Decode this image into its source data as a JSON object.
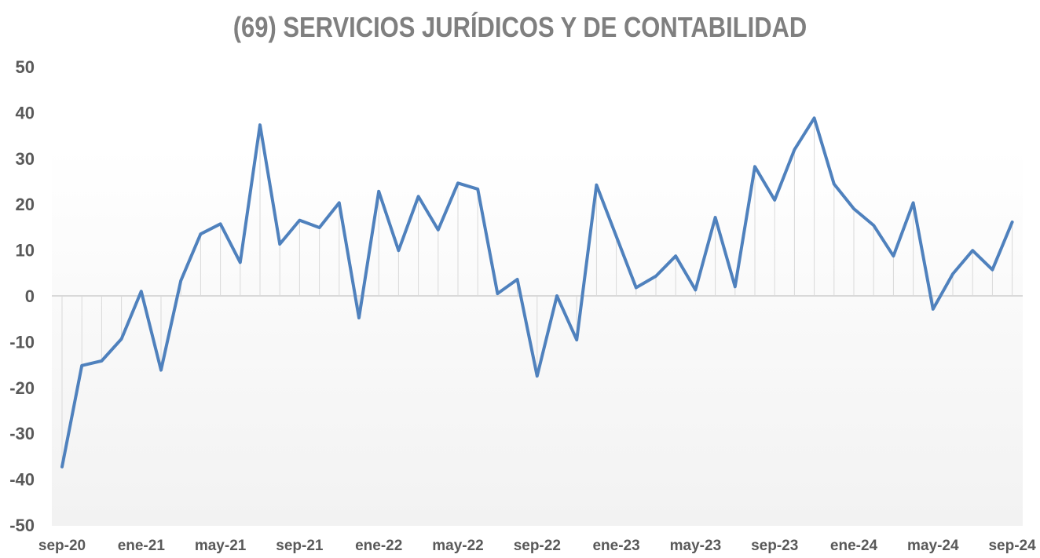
{
  "chart_data": {
    "type": "line",
    "title": "(69) SERVICIOS JURÍDICOS Y DE CONTABILIDAD",
    "xlabel": "",
    "ylabel": "",
    "ylim": [
      -50,
      50
    ],
    "yticks": [
      50,
      40,
      30,
      20,
      10,
      0,
      -10,
      -20,
      -30,
      -40,
      -50
    ],
    "x_tick_labels": [
      "sep-20",
      "ene-21",
      "may-21",
      "sep-21",
      "ene-22",
      "may-22",
      "sep-22",
      "ene-23",
      "may-23",
      "sep-23",
      "ene-24",
      "may-24",
      "sep-24"
    ],
    "x": [
      "sep-20",
      "oct-20",
      "nov-20",
      "dic-20",
      "ene-21",
      "feb-21",
      "mar-21",
      "abr-21",
      "may-21",
      "jun-21",
      "jul-21",
      "ago-21",
      "sep-21",
      "oct-21",
      "nov-21",
      "dic-21",
      "ene-22",
      "feb-22",
      "mar-22",
      "abr-22",
      "may-22",
      "jun-22",
      "jul-22",
      "ago-22",
      "sep-22",
      "oct-22",
      "nov-22",
      "dic-22",
      "ene-23",
      "feb-23",
      "mar-23",
      "abr-23",
      "may-23",
      "jun-23",
      "jul-23",
      "ago-23",
      "sep-23",
      "oct-23",
      "nov-23",
      "dic-23",
      "ene-24",
      "feb-24",
      "mar-24",
      "abr-24",
      "may-24",
      "jun-24",
      "jul-24",
      "ago-24",
      "sep-24"
    ],
    "series": [
      {
        "values": [
          -37.3,
          -15.2,
          -14.2,
          -9.4,
          1.0,
          -16.2,
          3.3,
          13.5,
          15.7,
          7.3,
          37.3,
          11.3,
          16.5,
          14.9,
          20.3,
          -4.8,
          22.8,
          9.9,
          21.7,
          14.4,
          24.6,
          23.3,
          0.5,
          3.6,
          -17.5,
          0.0,
          -9.6,
          24.2,
          13.0,
          1.8,
          4.3,
          8.7,
          1.3,
          17.1,
          2.0,
          28.2,
          20.9,
          31.9,
          38.8,
          24.4,
          19.0,
          15.4,
          8.7,
          20.3,
          -2.9,
          4.8,
          9.9,
          5.7,
          16.1
        ],
        "color": "#4f81bd"
      }
    ],
    "grid": false,
    "drop_lines": true,
    "drop_line_color": "#d9d9d9",
    "plot_background": "#f2f2f2"
  }
}
